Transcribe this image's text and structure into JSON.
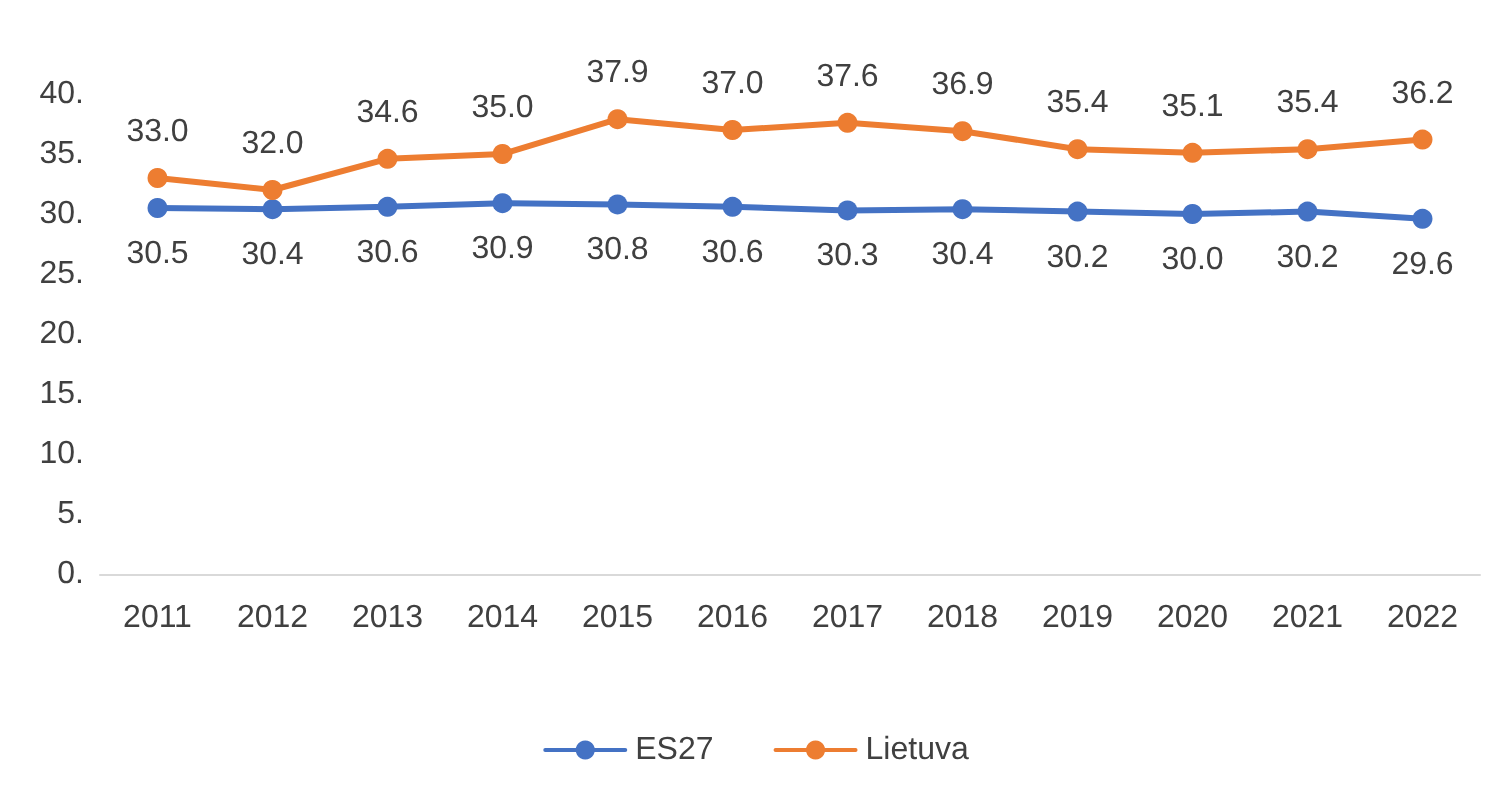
{
  "chart_data": {
    "type": "line",
    "categories": [
      "2011",
      "2012",
      "2013",
      "2014",
      "2015",
      "2016",
      "2017",
      "2018",
      "2019",
      "2020",
      "2021",
      "2022"
    ],
    "series": [
      {
        "name": "ES27",
        "color": "#4472c4",
        "values": [
          30.5,
          30.4,
          30.6,
          30.9,
          30.8,
          30.6,
          30.3,
          30.4,
          30.2,
          30.0,
          30.2,
          29.6
        ],
        "value_labels": [
          "30.5",
          "30.4",
          "30.6",
          "30.9",
          "30.8",
          "30.6",
          "30.3",
          "30.4",
          "30.2",
          "30.0",
          "30.2",
          "29.6"
        ]
      },
      {
        "name": "Lietuva",
        "color": "#ed7d31",
        "values": [
          33.0,
          32.0,
          34.6,
          35.0,
          37.9,
          37.0,
          37.6,
          36.9,
          35.4,
          35.1,
          35.4,
          36.2
        ],
        "value_labels": [
          "33.0",
          "32.0",
          "34.6",
          "35.0",
          "37.9",
          "37.0",
          "37.6",
          "36.9",
          "35.4",
          "35.1",
          "35.4",
          "36.2"
        ]
      }
    ],
    "ylim": [
      0,
      40
    ],
    "yticks": [
      {
        "value": 0,
        "label": "0."
      },
      {
        "value": 5,
        "label": "5."
      },
      {
        "value": 10,
        "label": "10."
      },
      {
        "value": 15,
        "label": "15."
      },
      {
        "value": 20,
        "label": "20."
      },
      {
        "value": 25,
        "label": "25."
      },
      {
        "value": 30,
        "label": "30."
      },
      {
        "value": 35,
        "label": "35."
      },
      {
        "value": 40,
        "label": "40."
      }
    ],
    "grid": false,
    "legend": "bottom",
    "marker": "circle",
    "line_style": "solid"
  }
}
